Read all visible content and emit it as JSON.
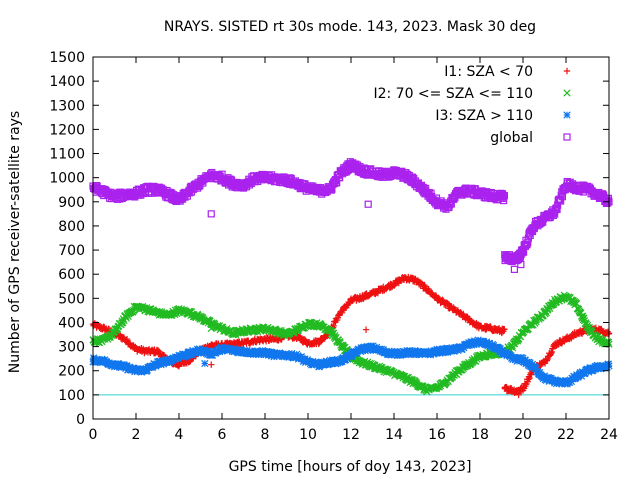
{
  "chart_data": {
    "type": "scatter",
    "title": "NRAYS. SISTED rt 30s mode. 143, 2023. Mask 30 deg",
    "xlabel": "GPS time [hours of doy 143, 2023]",
    "ylabel": "Number of GPS receiver-satellite rays",
    "xlim": [
      0,
      24
    ],
    "ylim": [
      0,
      1500
    ],
    "xticks": [
      0,
      2,
      4,
      6,
      8,
      10,
      12,
      14,
      16,
      18,
      20,
      22,
      24
    ],
    "yticks": [
      0,
      100,
      200,
      300,
      400,
      500,
      600,
      700,
      800,
      900,
      1000,
      1100,
      1200,
      1300,
      1400,
      1500
    ],
    "reference_line": {
      "y": 100,
      "color": "#33d0d8"
    },
    "legend_position": "top-right",
    "series": [
      {
        "name": "I1: SZA < 70",
        "marker": "plus",
        "color": "#ee1111",
        "points": [
          [
            0,
            390
          ],
          [
            0.5,
            375
          ],
          [
            1,
            355
          ],
          [
            1.5,
            330
          ],
          [
            2,
            290
          ],
          [
            2.5,
            280
          ],
          [
            3,
            280
          ],
          [
            3.5,
            240
          ],
          [
            4,
            225
          ],
          [
            4.5,
            245
          ],
          [
            5,
            285
          ],
          [
            5.5,
            305
          ],
          [
            6,
            305
          ],
          [
            6.5,
            310
          ],
          [
            7,
            315
          ],
          [
            7.5,
            325
          ],
          [
            8,
            330
          ],
          [
            8.5,
            330
          ],
          [
            9,
            345
          ],
          [
            9.5,
            340
          ],
          [
            10,
            315
          ],
          [
            10.5,
            320
          ],
          [
            11,
            360
          ],
          [
            11.5,
            440
          ],
          [
            12,
            490
          ],
          [
            12.5,
            505
          ],
          [
            13,
            520
          ],
          [
            13.5,
            540
          ],
          [
            14,
            560
          ],
          [
            14.5,
            585
          ],
          [
            15,
            575
          ],
          [
            15.5,
            540
          ],
          [
            16,
            500
          ],
          [
            16.5,
            470
          ],
          [
            17,
            440
          ],
          [
            17.5,
            410
          ],
          [
            18,
            380
          ],
          [
            18.5,
            375
          ],
          [
            19,
            365
          ],
          [
            19.3,
            125
          ],
          [
            19.7,
            115
          ],
          [
            20,
            125
          ],
          [
            20.5,
            210
          ],
          [
            21,
            235
          ],
          [
            21.5,
            310
          ],
          [
            22,
            330
          ],
          [
            22.5,
            355
          ],
          [
            23,
            370
          ],
          [
            23.5,
            370
          ],
          [
            24,
            355
          ]
        ],
        "isolated": [
          [
            5.5,
            225
          ],
          [
            12.7,
            370
          ],
          [
            19.8,
            100
          ]
        ]
      },
      {
        "name": "I2: 70 <= SZA <= 110",
        "marker": "x",
        "color": "#22bb22",
        "points": [
          [
            0,
            325
          ],
          [
            0.5,
            325
          ],
          [
            1,
            360
          ],
          [
            1.5,
            420
          ],
          [
            2,
            465
          ],
          [
            2.5,
            455
          ],
          [
            3,
            440
          ],
          [
            3.5,
            430
          ],
          [
            4,
            450
          ],
          [
            4.5,
            440
          ],
          [
            5,
            420
          ],
          [
            5.5,
            395
          ],
          [
            6,
            375
          ],
          [
            6.5,
            355
          ],
          [
            7,
            365
          ],
          [
            7.5,
            370
          ],
          [
            8,
            375
          ],
          [
            8.5,
            365
          ],
          [
            9,
            350
          ],
          [
            9.5,
            370
          ],
          [
            10,
            395
          ],
          [
            10.5,
            390
          ],
          [
            11,
            370
          ],
          [
            11.5,
            310
          ],
          [
            12,
            260
          ],
          [
            12.5,
            235
          ],
          [
            13,
            220
          ],
          [
            13.5,
            205
          ],
          [
            14,
            190
          ],
          [
            14.5,
            170
          ],
          [
            15,
            150
          ],
          [
            15.5,
            120
          ],
          [
            16,
            130
          ],
          [
            16.5,
            160
          ],
          [
            17,
            200
          ],
          [
            17.5,
            230
          ],
          [
            18,
            260
          ],
          [
            18.5,
            270
          ],
          [
            19,
            275
          ],
          [
            19.5,
            300
          ],
          [
            20,
            360
          ],
          [
            20.5,
            400
          ],
          [
            21,
            440
          ],
          [
            21.5,
            490
          ],
          [
            22,
            510
          ],
          [
            22.5,
            470
          ],
          [
            23,
            380
          ],
          [
            23.5,
            330
          ],
          [
            24,
            310
          ]
        ],
        "isolated": [
          [
            5.5,
            375
          ]
        ]
      },
      {
        "name": "I3: SZA > 110",
        "marker": "star",
        "color": "#1177ee",
        "points": [
          [
            0,
            245
          ],
          [
            0.5,
            240
          ],
          [
            1,
            225
          ],
          [
            1.5,
            215
          ],
          [
            2,
            200
          ],
          [
            2.5,
            205
          ],
          [
            3,
            230
          ],
          [
            3.5,
            240
          ],
          [
            4,
            260
          ],
          [
            4.5,
            270
          ],
          [
            5,
            285
          ],
          [
            5.5,
            270
          ],
          [
            6,
            290
          ],
          [
            6.5,
            285
          ],
          [
            7,
            280
          ],
          [
            7.5,
            275
          ],
          [
            8,
            275
          ],
          [
            8.5,
            265
          ],
          [
            9,
            265
          ],
          [
            9.5,
            260
          ],
          [
            10,
            235
          ],
          [
            10.5,
            225
          ],
          [
            11,
            235
          ],
          [
            11.5,
            240
          ],
          [
            12,
            265
          ],
          [
            12.5,
            290
          ],
          [
            13,
            295
          ],
          [
            13.5,
            280
          ],
          [
            14,
            270
          ],
          [
            14.5,
            275
          ],
          [
            15,
            275
          ],
          [
            15.5,
            270
          ],
          [
            16,
            280
          ],
          [
            16.5,
            285
          ],
          [
            17,
            290
          ],
          [
            17.5,
            310
          ],
          [
            18,
            320
          ],
          [
            18.5,
            305
          ],
          [
            19,
            280
          ],
          [
            19.5,
            250
          ],
          [
            20,
            245
          ],
          [
            20.5,
            215
          ],
          [
            21,
            170
          ],
          [
            21.5,
            155
          ],
          [
            22,
            150
          ],
          [
            22.5,
            175
          ],
          [
            23,
            200
          ],
          [
            23.5,
            215
          ],
          [
            24,
            220
          ]
        ],
        "isolated": [
          [
            5.2,
            230
          ]
        ]
      },
      {
        "name": "global",
        "marker": "square",
        "color": "#aa22ee",
        "points": [
          [
            0,
            960
          ],
          [
            0.5,
            940
          ],
          [
            1,
            920
          ],
          [
            1.5,
            930
          ],
          [
            2,
            935
          ],
          [
            2.5,
            950
          ],
          [
            3,
            950
          ],
          [
            3.5,
            930
          ],
          [
            4,
            905
          ],
          [
            4.5,
            945
          ],
          [
            5,
            980
          ],
          [
            5.5,
            1010
          ],
          [
            6,
            1000
          ],
          [
            6.5,
            975
          ],
          [
            7,
            970
          ],
          [
            7.5,
            995
          ],
          [
            8,
            1000
          ],
          [
            8.5,
            995
          ],
          [
            9,
            990
          ],
          [
            9.5,
            975
          ],
          [
            10,
            955
          ],
          [
            10.5,
            945
          ],
          [
            11,
            950
          ],
          [
            11.5,
            1015
          ],
          [
            12,
            1055
          ],
          [
            12.5,
            1030
          ],
          [
            13,
            1020
          ],
          [
            13.5,
            1010
          ],
          [
            14,
            1020
          ],
          [
            14.5,
            1010
          ],
          [
            15,
            980
          ],
          [
            15.5,
            940
          ],
          [
            16,
            900
          ],
          [
            16.5,
            880
          ],
          [
            17,
            940
          ],
          [
            17.5,
            945
          ],
          [
            18,
            935
          ],
          [
            18.5,
            925
          ],
          [
            19,
            920
          ],
          [
            19.3,
            670
          ],
          [
            19.7,
            660
          ],
          [
            20,
            700
          ],
          [
            20.5,
            800
          ],
          [
            21,
            830
          ],
          [
            21.5,
            860
          ],
          [
            22,
            970
          ],
          [
            22.5,
            960
          ],
          [
            23,
            950
          ],
          [
            23.5,
            930
          ],
          [
            24,
            900
          ]
        ],
        "isolated": [
          [
            5.5,
            850
          ],
          [
            19.6,
            620
          ],
          [
            19.9,
            640
          ],
          [
            12.8,
            890
          ]
        ]
      }
    ]
  }
}
